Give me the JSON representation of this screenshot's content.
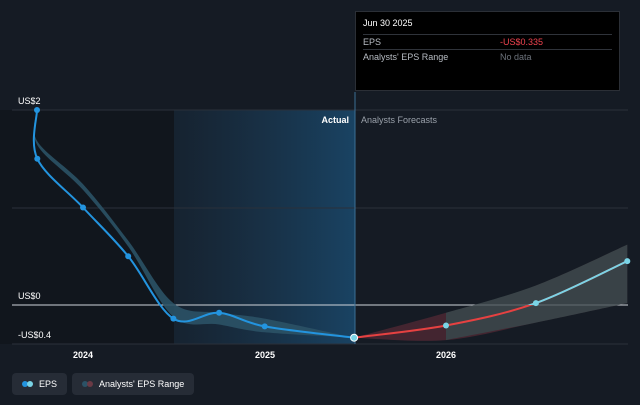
{
  "chart_data": {
    "type": "line",
    "y_axis": {
      "labels": [
        "US$2",
        "US$0",
        "-US$0.4"
      ],
      "ylim": [
        -0.4,
        2
      ]
    },
    "x_axis": {
      "ticks": [
        "2024",
        "2025",
        "2026"
      ]
    },
    "regions": {
      "actual_label": "Actual",
      "forecast_label": "Analysts Forecasts"
    },
    "series": [
      {
        "name": "EPS",
        "color_actual": "#2394df",
        "color_forecast_positive": "#7ad4e6",
        "color_forecast_negative": "#e64141",
        "points": [
          {
            "x": "2023-07-01",
            "y": 2.0
          },
          {
            "x": "2023-10-01",
            "y": 1.5
          },
          {
            "x": "2024-01-01",
            "y": 1.0
          },
          {
            "x": "2024-04-01",
            "y": 0.5
          },
          {
            "x": "2024-07-01",
            "y": -0.14
          },
          {
            "x": "2024-10-01",
            "y": -0.08
          },
          {
            "x": "2025-01-01",
            "y": -0.22
          },
          {
            "x": "2025-06-30",
            "y": -0.335
          },
          {
            "x": "2026-01-01",
            "y": -0.21
          },
          {
            "x": "2026-07-01",
            "y": 0.02
          },
          {
            "x": "2027-01-01",
            "y": 0.45
          }
        ]
      },
      {
        "name": "Analysts' EPS Range",
        "color": "#2b5266",
        "band": [
          {
            "x": "2023-07-01",
            "low": 2.0,
            "high": 2.0
          },
          {
            "x": "2023-10-01",
            "low": 1.64,
            "high": 1.68
          },
          {
            "x": "2024-01-01",
            "low": 1.18,
            "high": 1.24
          },
          {
            "x": "2024-04-01",
            "low": 0.6,
            "high": 0.66
          },
          {
            "x": "2024-07-01",
            "low": -0.12,
            "high": 0.02
          },
          {
            "x": "2024-10-01",
            "low": -0.2,
            "high": -0.08
          },
          {
            "x": "2025-01-01",
            "low": -0.28,
            "high": -0.14
          },
          {
            "x": "2025-06-30",
            "low": -0.335,
            "high": -0.335
          },
          {
            "x": "2026-01-01",
            "low": -0.36,
            "high": -0.08
          },
          {
            "x": "2026-07-01",
            "low": -0.18,
            "high": 0.2
          },
          {
            "x": "2027-01-01",
            "low": 0.02,
            "high": 0.62
          }
        ]
      }
    ]
  },
  "tooltip": {
    "date": "Jun 30 2025",
    "rows": [
      {
        "label": "EPS",
        "value": "-US$0.335"
      },
      {
        "label": "Analysts' EPS Range",
        "value": "No data"
      }
    ]
  },
  "legend": {
    "items": [
      {
        "label": "EPS",
        "color": "#2394df"
      },
      {
        "label": "Analysts' EPS Range",
        "color": "#2b5266"
      }
    ]
  }
}
